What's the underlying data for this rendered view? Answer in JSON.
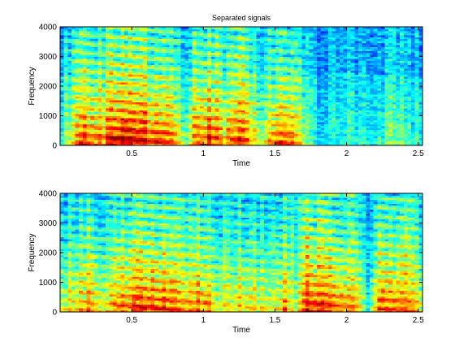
{
  "chart_data": [
    {
      "type": "heatmap",
      "title": "Separated signals",
      "xlabel": "Time",
      "ylabel": "Frequency",
      "xlim": [
        0,
        2.53
      ],
      "ylim": [
        0,
        4000
      ],
      "xticks": [
        0.5,
        1,
        1.5,
        2,
        2.5
      ],
      "xtick_labels": [
        "0.5",
        "1",
        "1.5",
        "2",
        "2.5"
      ],
      "yticks": [
        0,
        1000,
        2000,
        3000,
        4000
      ],
      "ytick_labels": [
        "0",
        "1000",
        "2000",
        "3000",
        "4000"
      ],
      "colormap": "jet",
      "grid": false,
      "activity_envelope": [
        {
          "t": 0.0,
          "e": 0.15
        },
        {
          "t": 0.08,
          "e": 0.55
        },
        {
          "t": 0.15,
          "e": 0.8
        },
        {
          "t": 0.22,
          "e": 0.85
        },
        {
          "t": 0.3,
          "e": 0.6
        },
        {
          "t": 0.35,
          "e": 0.95
        },
        {
          "t": 0.45,
          "e": 1.0
        },
        {
          "t": 0.55,
          "e": 0.95
        },
        {
          "t": 0.62,
          "e": 0.85
        },
        {
          "t": 0.7,
          "e": 0.9
        },
        {
          "t": 0.8,
          "e": 0.7
        },
        {
          "t": 0.88,
          "e": 0.35
        },
        {
          "t": 0.95,
          "e": 0.75
        },
        {
          "t": 1.05,
          "e": 0.85
        },
        {
          "t": 1.15,
          "e": 0.65
        },
        {
          "t": 1.25,
          "e": 0.85
        },
        {
          "t": 1.35,
          "e": 0.55
        },
        {
          "t": 1.42,
          "e": 0.4
        },
        {
          "t": 1.5,
          "e": 0.75
        },
        {
          "t": 1.6,
          "e": 0.8
        },
        {
          "t": 1.68,
          "e": 0.45
        },
        {
          "t": 1.75,
          "e": 0.15
        },
        {
          "t": 1.9,
          "e": 0.1
        },
        {
          "t": 2.0,
          "e": 0.25
        },
        {
          "t": 2.15,
          "e": 0.15
        },
        {
          "t": 2.3,
          "e": 0.3
        },
        {
          "t": 2.45,
          "e": 0.2
        },
        {
          "t": 2.53,
          "e": 0.15
        }
      ]
    },
    {
      "type": "heatmap",
      "title": "",
      "xlabel": "Time",
      "ylabel": "Frequency",
      "xlim": [
        0,
        2.53
      ],
      "ylim": [
        0,
        4000
      ],
      "xticks": [
        0.5,
        1,
        1.5,
        2,
        2.5
      ],
      "xtick_labels": [
        "0.5",
        "1",
        "1.5",
        "2",
        "2.5"
      ],
      "yticks": [
        0,
        1000,
        2000,
        3000,
        4000
      ],
      "ytick_labels": [
        "0",
        "1000",
        "2000",
        "3000",
        "4000"
      ],
      "colormap": "jet",
      "grid": false,
      "activity_envelope": [
        {
          "t": 0.0,
          "e": 0.45
        },
        {
          "t": 0.1,
          "e": 0.6
        },
        {
          "t": 0.2,
          "e": 0.75
        },
        {
          "t": 0.3,
          "e": 0.55
        },
        {
          "t": 0.4,
          "e": 0.7
        },
        {
          "t": 0.5,
          "e": 0.8
        },
        {
          "t": 0.6,
          "e": 0.85
        },
        {
          "t": 0.7,
          "e": 0.85
        },
        {
          "t": 0.8,
          "e": 0.8
        },
        {
          "t": 0.9,
          "e": 0.6
        },
        {
          "t": 1.0,
          "e": 0.75
        },
        {
          "t": 1.1,
          "e": 0.55
        },
        {
          "t": 1.2,
          "e": 0.45
        },
        {
          "t": 1.3,
          "e": 0.6
        },
        {
          "t": 1.4,
          "e": 0.5
        },
        {
          "t": 1.5,
          "e": 0.4
        },
        {
          "t": 1.57,
          "e": 0.7
        },
        {
          "t": 1.65,
          "e": 0.3
        },
        {
          "t": 1.72,
          "e": 0.9
        },
        {
          "t": 1.8,
          "e": 0.85
        },
        {
          "t": 1.9,
          "e": 0.8
        },
        {
          "t": 2.0,
          "e": 0.75
        },
        {
          "t": 2.08,
          "e": 0.55
        },
        {
          "t": 2.15,
          "e": 0.2
        },
        {
          "t": 2.22,
          "e": 0.75
        },
        {
          "t": 2.3,
          "e": 0.8
        },
        {
          "t": 2.4,
          "e": 0.7
        },
        {
          "t": 2.53,
          "e": 0.5
        }
      ]
    }
  ]
}
